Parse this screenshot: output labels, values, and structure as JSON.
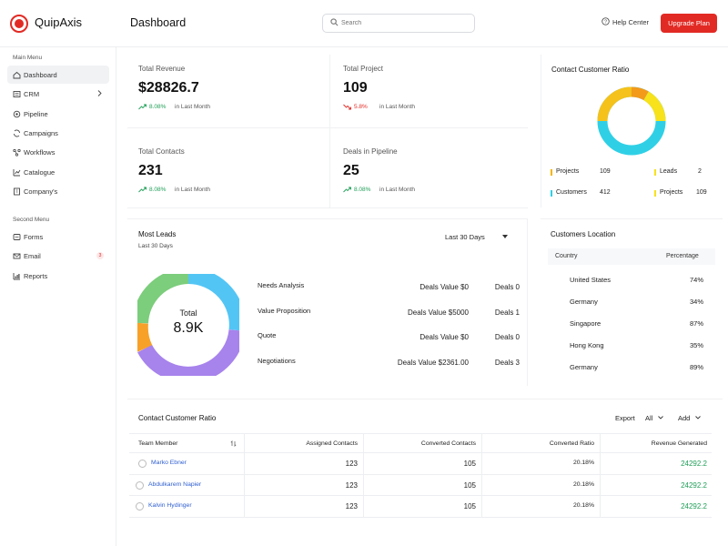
{
  "app": {
    "brand": "QuipAxis",
    "page_title": "Dashboard"
  },
  "header": {
    "search_placeholder": "Search",
    "help_label": "Help Center",
    "upgrade_label": "Upgrade Plan"
  },
  "sidebar": {
    "main_label": "Main Menu",
    "main_items": [
      {
        "label": "Dashboard",
        "icon": "home-icon",
        "active": true
      },
      {
        "label": "CRM",
        "icon": "crm-icon",
        "has_chevron": true
      },
      {
        "label": "Pipeline",
        "icon": "pipeline-icon"
      },
      {
        "label": "Campaigns",
        "icon": "campaigns-icon"
      },
      {
        "label": "Workflows",
        "icon": "workflows-icon"
      },
      {
        "label": "Catalogue",
        "icon": "catalogue-icon"
      },
      {
        "label": "Company's",
        "icon": "company-icon"
      }
    ],
    "second_label": "Second Menu",
    "second_items": [
      {
        "label": "Forms",
        "icon": "forms-icon"
      },
      {
        "label": "Email",
        "icon": "email-icon",
        "badge": "3"
      },
      {
        "label": "Reports",
        "icon": "reports-icon"
      }
    ]
  },
  "kpis": [
    {
      "label": "Total Revenue",
      "value": "$28826.7",
      "change": "8.08%",
      "trend": "up",
      "period": "in Last Month"
    },
    {
      "label": "Total Project",
      "value": "109",
      "change": "5.8%",
      "trend": "down",
      "period": "in Last Month"
    },
    {
      "label": "Total Contacts",
      "value": "231",
      "change": "8.08%",
      "trend": "up",
      "period": "in Last Month"
    },
    {
      "label": "Deals in Pipeline",
      "value": "25",
      "change": "8.08%",
      "trend": "up",
      "period": "in Last Month"
    }
  ],
  "contact_ratio": {
    "title": "Contact Customer Ratio",
    "legend": [
      {
        "label": "Projects",
        "value": "109",
        "color": "#f5b400"
      },
      {
        "label": "Leads",
        "value": "2",
        "color": "#f7e21b"
      },
      {
        "label": "Customers",
        "value": "412",
        "color": "#2fd0e6"
      },
      {
        "label": "Projects",
        "value": "109",
        "color": "#f7e21b"
      }
    ]
  },
  "most_leads": {
    "title": "Most Leads",
    "subtitle": "Last 30 Days",
    "filter": "Last 30 Days",
    "donut_label": "Total",
    "donut_value": "8.9K",
    "rows": [
      {
        "name": "Needs Analysis",
        "deals_value": "Deals Value $0",
        "deals": "Deals 0"
      },
      {
        "name": "Value Proposition",
        "deals_value": "Deals Value $5000",
        "deals": "Deals 1"
      },
      {
        "name": "Quote",
        "deals_value": "Deals Value $0",
        "deals": "Deals 0"
      },
      {
        "name": "Negotiations",
        "deals_value": "Deals Value $2361.00",
        "deals": "Deals 3"
      }
    ]
  },
  "location": {
    "title": "Customers Location",
    "col_country": "Country",
    "col_percentage": "Percentage",
    "rows": [
      {
        "country": "United States",
        "pct": "74%",
        "value": 74,
        "flag": "us-flag-icon"
      },
      {
        "country": "Germany",
        "pct": "34%",
        "value": 34,
        "flag": "de-flag-icon"
      },
      {
        "country": "Singapore",
        "pct": "87%",
        "value": 87,
        "flag": "sg-flag-icon"
      },
      {
        "country": "Hong Kong",
        "pct": "35%",
        "value": 35,
        "flag": "hk-flag-icon"
      },
      {
        "country": "Germany",
        "pct": "89%",
        "value": 89,
        "flag": "de-flag-icon"
      }
    ]
  },
  "table": {
    "title": "Contact Customer Ratio",
    "export_label": "Export",
    "filter_label": "All",
    "add_label": "Add",
    "columns": [
      "Team Member",
      "Assigned Contacts",
      "Converted Contacts",
      "Converted Ratio",
      "Revenue Generated"
    ],
    "rows": [
      {
        "member": "Marko Ebner",
        "assigned": "123",
        "converted": "105",
        "ratio": "20.18%",
        "revenue": "24292.2"
      },
      {
        "member": "Abdulkarem Napier",
        "assigned": "123",
        "converted": "105",
        "ratio": "20.18%",
        "revenue": "24292.2"
      },
      {
        "member": "Kalvin Hydinger",
        "assigned": "123",
        "converted": "105",
        "ratio": "20.18%",
        "revenue": "24292.2"
      }
    ]
  },
  "colors": {
    "accent": "#e22a24",
    "up": "#1e9e57",
    "sparkline": "#3fb8ee",
    "link": "#2f5fd0",
    "revenue": "#1e9e57"
  }
}
